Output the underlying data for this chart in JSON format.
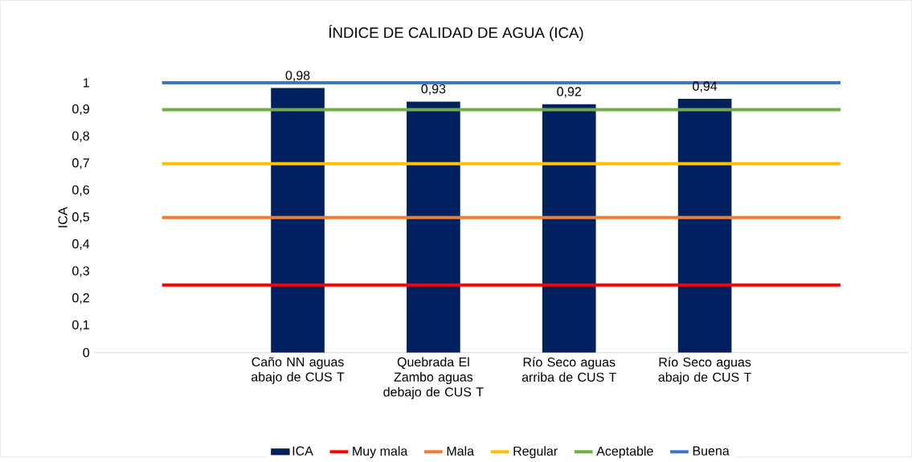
{
  "chart_data": {
    "type": "bar",
    "title": "ÍNDICE DE CALIDAD DE AGUA (ICA)",
    "ylabel": "ICA",
    "categories": [
      null,
      "Caño NN aguas abajo de CUS T",
      "Quebrada El Zambo aguas debajo de CUS T",
      "Río Seco aguas arriba de CUS T",
      "Río Seco aguas abajo de CUS T",
      null
    ],
    "ylim": [
      0,
      1
    ],
    "yticks": [
      0,
      {
        "value": 0.1,
        "label": "0,1"
      },
      {
        "value": 0.2,
        "label": "0,2"
      },
      {
        "value": 0.3,
        "label": "0,3"
      },
      {
        "value": 0.4,
        "label": "0,4"
      },
      {
        "value": 0.5,
        "label": "0,5"
      },
      {
        "value": 0.6,
        "label": "0,6"
      },
      {
        "value": 0.7,
        "label": "0,7"
      },
      {
        "value": 0.8,
        "label": "0,8"
      },
      {
        "value": 0.9,
        "label": "0,9"
      },
      1
    ],
    "legend": "bottom",
    "series": [
      {
        "name": "ICA",
        "color": "#002060",
        "values": [
          null,
          0.98,
          0.93,
          0.92,
          0.94,
          null
        ],
        "value_labels": [
          null,
          "0,98",
          "0,93",
          "0,92",
          "0,94",
          null
        ]
      },
      {
        "name": "Muy mala",
        "type": "line",
        "color": "#ff0000",
        "values": [
          0.25,
          0.25,
          0.25,
          0.25,
          0.25,
          0.25
        ]
      },
      {
        "name": "Mala",
        "type": "line",
        "color": "#ed7d31",
        "values": [
          0.5,
          0.5,
          0.5,
          0.5,
          0.5,
          0.5
        ]
      },
      {
        "name": "Regular",
        "type": "line",
        "color": "#ffc000",
        "values": [
          0.7,
          0.7,
          0.7,
          0.7,
          0.7,
          0.7
        ]
      },
      {
        "name": "Aceptable",
        "type": "line",
        "color": "#70ad47",
        "values": [
          0.9,
          0.9,
          0.9,
          0.9,
          0.9,
          0.9
        ]
      },
      {
        "name": "Buena",
        "type": "line",
        "color": "#4472c4",
        "values": [
          1,
          1,
          1,
          1,
          1,
          1
        ]
      }
    ]
  }
}
